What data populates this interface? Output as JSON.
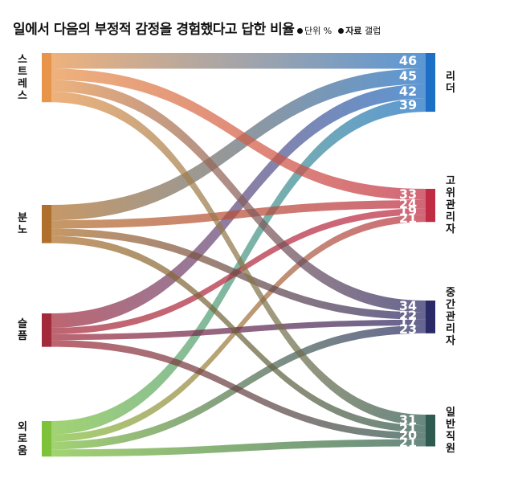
{
  "title": "일에서 다음의 부정적 감정을 경험했다고 답한 비율",
  "unit_label": "단위 %",
  "source_label": "자료",
  "source_value": "갤럽",
  "emotions": [
    {
      "label": "스트레스",
      "color": "#e8944a"
    },
    {
      "label": "분노",
      "color": "#b0702c"
    },
    {
      "label": "슬픔",
      "color": "#a32a3a"
    },
    {
      "label": "외로움",
      "color": "#7ec23c"
    }
  ],
  "groups": [
    {
      "label": "리더",
      "color": "#1c6fc4"
    },
    {
      "label": "고위 관리자",
      "color": "#c02c43"
    },
    {
      "label": "중간 관리자",
      "color": "#2a2a66"
    },
    {
      "label": "일반 직원",
      "color": "#2e5a4f"
    }
  ],
  "flows": [
    {
      "emotion": "스트레스",
      "group": "리더",
      "value": 46
    },
    {
      "emotion": "분노",
      "group": "리더",
      "value": 45
    },
    {
      "emotion": "슬픔",
      "group": "리더",
      "value": 42
    },
    {
      "emotion": "외로움",
      "group": "리더",
      "value": 39
    },
    {
      "emotion": "스트레스",
      "group": "고위 관리자",
      "value": 33
    },
    {
      "emotion": "분노",
      "group": "고위 관리자",
      "value": 24
    },
    {
      "emotion": "슬픔",
      "group": "고위 관리자",
      "value": 19
    },
    {
      "emotion": "외로움",
      "group": "고위 관리자",
      "value": 21
    },
    {
      "emotion": "스트레스",
      "group": "중간 관리자",
      "value": 34
    },
    {
      "emotion": "분노",
      "group": "중간 관리자",
      "value": 22
    },
    {
      "emotion": "슬픔",
      "group": "중간 관리자",
      "value": 17
    },
    {
      "emotion": "외로움",
      "group": "중간 관리자",
      "value": 23
    },
    {
      "emotion": "스트레스",
      "group": "일반 직원",
      "value": 31
    },
    {
      "emotion": "분노",
      "group": "일반 직원",
      "value": 21
    },
    {
      "emotion": "슬픔",
      "group": "일반 직원",
      "value": 20
    },
    {
      "emotion": "외로움",
      "group": "일반 직원",
      "value": 21
    }
  ]
}
